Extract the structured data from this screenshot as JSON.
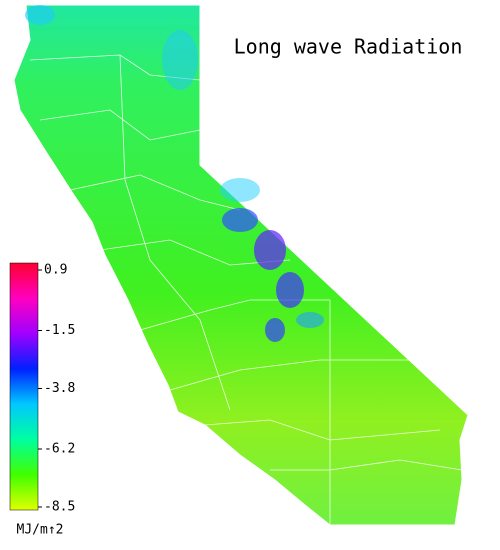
{
  "title": "Long wave Radiation",
  "colorbar": {
    "lim": [
      -8.5,
      0.9
    ],
    "ticks": [
      0.9,
      -1.5,
      -3.8,
      -6.2,
      -8.5
    ],
    "unit": "MJ/m↑2",
    "colors": [
      "#e0ff00",
      "#40ff00",
      "#00ffa0",
      "#00c8ff",
      "#0020ff",
      "#a000ff",
      "#ff00c0",
      "#ff0030"
    ]
  }
}
